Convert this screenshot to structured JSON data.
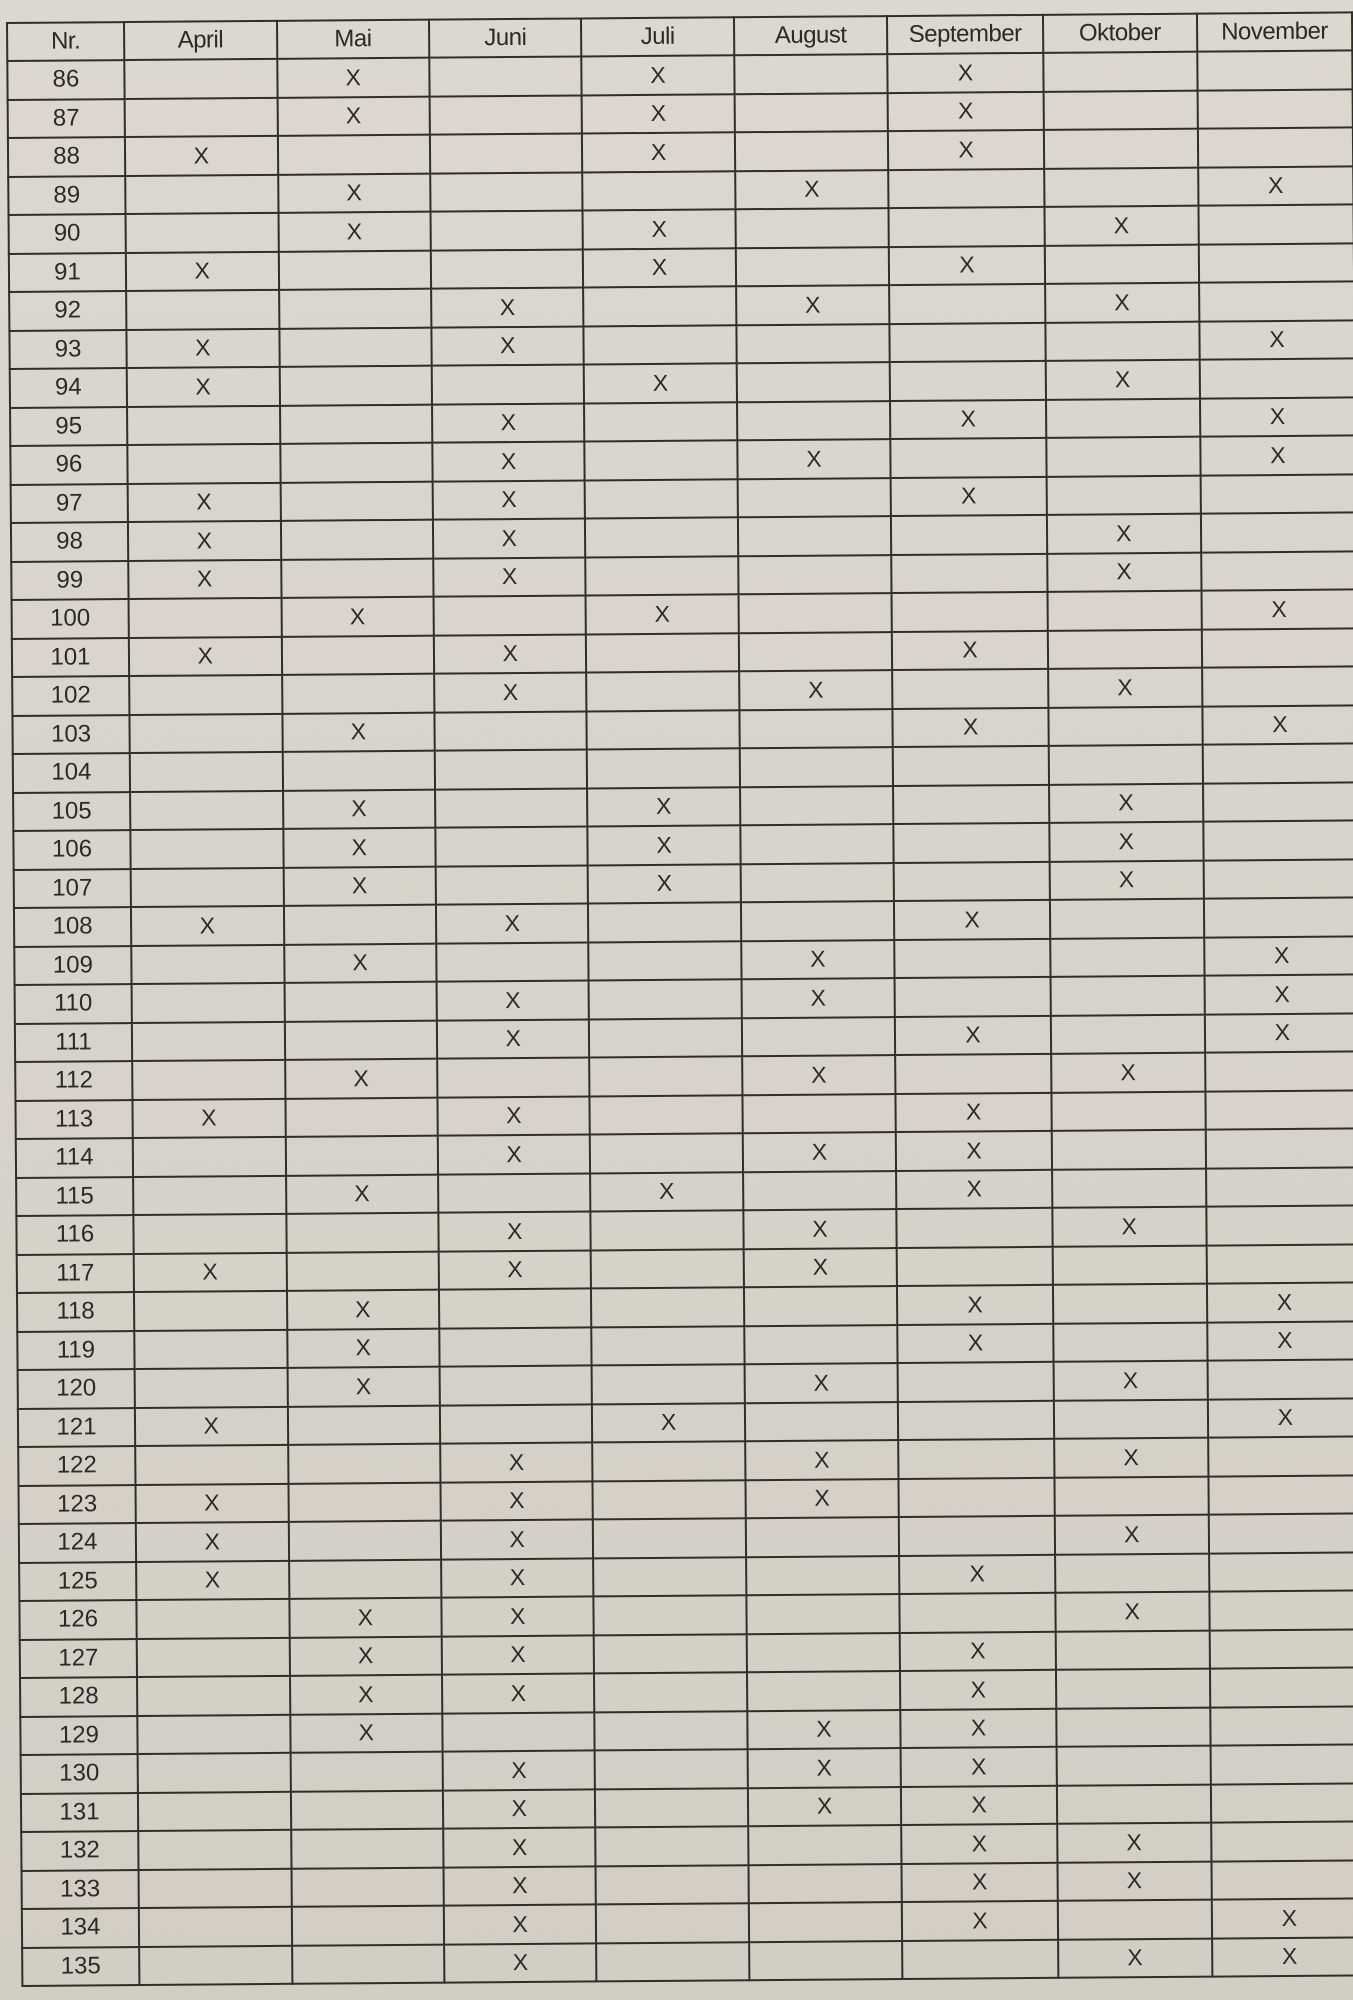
{
  "table": {
    "headers": [
      "Nr.",
      "April",
      "Mai",
      "Juni",
      "Juli",
      "August",
      "September",
      "Oktober",
      "November"
    ],
    "rows": [
      {
        "nr": "86",
        "marks": [
          "",
          "X",
          "",
          "X",
          "",
          "X",
          "",
          ""
        ]
      },
      {
        "nr": "87",
        "marks": [
          "",
          "X",
          "",
          "X",
          "",
          "X",
          "",
          ""
        ]
      },
      {
        "nr": "88",
        "marks": [
          "X",
          "",
          "",
          "X",
          "",
          "X",
          "",
          ""
        ]
      },
      {
        "nr": "89",
        "marks": [
          "",
          "X",
          "",
          "",
          "X",
          "",
          "",
          "X"
        ]
      },
      {
        "nr": "90",
        "marks": [
          "",
          "X",
          "",
          "X",
          "",
          "",
          "X",
          ""
        ]
      },
      {
        "nr": "91",
        "marks": [
          "X",
          "",
          "",
          "X",
          "",
          "X",
          "",
          ""
        ]
      },
      {
        "nr": "92",
        "marks": [
          "",
          "",
          "X",
          "",
          "X",
          "",
          "X",
          ""
        ]
      },
      {
        "nr": "93",
        "marks": [
          "X",
          "",
          "X",
          "",
          "",
          "",
          "",
          "X"
        ]
      },
      {
        "nr": "94",
        "marks": [
          "X",
          "",
          "",
          "X",
          "",
          "",
          "X",
          ""
        ]
      },
      {
        "nr": "95",
        "marks": [
          "",
          "",
          "X",
          "",
          "",
          "X",
          "",
          "X"
        ]
      },
      {
        "nr": "96",
        "marks": [
          "",
          "",
          "X",
          "",
          "X",
          "",
          "",
          "X"
        ]
      },
      {
        "nr": "97",
        "marks": [
          "X",
          "",
          "X",
          "",
          "",
          "X",
          "",
          ""
        ]
      },
      {
        "nr": "98",
        "marks": [
          "X",
          "",
          "X",
          "",
          "",
          "",
          "X",
          ""
        ]
      },
      {
        "nr": "99",
        "marks": [
          "X",
          "",
          "X",
          "",
          "",
          "",
          "X",
          ""
        ]
      },
      {
        "nr": "100",
        "marks": [
          "",
          "X",
          "",
          "X",
          "",
          "",
          "",
          "X"
        ]
      },
      {
        "nr": "101",
        "marks": [
          "X",
          "",
          "X",
          "",
          "",
          "X",
          "",
          ""
        ]
      },
      {
        "nr": "102",
        "marks": [
          "",
          "",
          "X",
          "",
          "X",
          "",
          "X",
          ""
        ]
      },
      {
        "nr": "103",
        "marks": [
          "",
          "X",
          "",
          "",
          "",
          "X",
          "",
          "X"
        ]
      },
      {
        "nr": "104",
        "marks": [
          "",
          "",
          "",
          "",
          "",
          "",
          "",
          ""
        ]
      },
      {
        "nr": "105",
        "marks": [
          "",
          "X",
          "",
          "X",
          "",
          "",
          "X",
          ""
        ]
      },
      {
        "nr": "106",
        "marks": [
          "",
          "X",
          "",
          "X",
          "",
          "",
          "X",
          ""
        ]
      },
      {
        "nr": "107",
        "marks": [
          "",
          "X",
          "",
          "X",
          "",
          "",
          "X",
          ""
        ]
      },
      {
        "nr": "108",
        "marks": [
          "X",
          "",
          "X",
          "",
          "",
          "X",
          "",
          ""
        ]
      },
      {
        "nr": "109",
        "marks": [
          "",
          "X",
          "",
          "",
          "X",
          "",
          "",
          "X"
        ]
      },
      {
        "nr": "110",
        "marks": [
          "",
          "",
          "X",
          "",
          "X",
          "",
          "",
          "X"
        ]
      },
      {
        "nr": "111",
        "marks": [
          "",
          "",
          "X",
          "",
          "",
          "X",
          "",
          "X"
        ]
      },
      {
        "nr": "112",
        "marks": [
          "",
          "X",
          "",
          "",
          "X",
          "",
          "X",
          ""
        ]
      },
      {
        "nr": "113",
        "marks": [
          "X",
          "",
          "X",
          "",
          "",
          "X",
          "",
          ""
        ]
      },
      {
        "nr": "114",
        "marks": [
          "",
          "",
          "X",
          "",
          "X",
          "X",
          "",
          ""
        ]
      },
      {
        "nr": "115",
        "marks": [
          "",
          "X",
          "",
          "X",
          "",
          "X",
          "",
          ""
        ]
      },
      {
        "nr": "116",
        "marks": [
          "",
          "",
          "X",
          "",
          "X",
          "",
          "X",
          ""
        ]
      },
      {
        "nr": "117",
        "marks": [
          "X",
          "",
          "X",
          "",
          "X",
          "",
          "",
          ""
        ]
      },
      {
        "nr": "118",
        "marks": [
          "",
          "X",
          "",
          "",
          "",
          "X",
          "",
          "X"
        ]
      },
      {
        "nr": "119",
        "marks": [
          "",
          "X",
          "",
          "",
          "",
          "X",
          "",
          "X"
        ]
      },
      {
        "nr": "120",
        "marks": [
          "",
          "X",
          "",
          "",
          "X",
          "",
          "X",
          ""
        ]
      },
      {
        "nr": "121",
        "marks": [
          "X",
          "",
          "",
          "X",
          "",
          "",
          "",
          "X"
        ]
      },
      {
        "nr": "122",
        "marks": [
          "",
          "",
          "X",
          "",
          "X",
          "",
          "X",
          ""
        ]
      },
      {
        "nr": "123",
        "marks": [
          "X",
          "",
          "X",
          "",
          "X",
          "",
          "",
          ""
        ]
      },
      {
        "nr": "124",
        "marks": [
          "X",
          "",
          "X",
          "",
          "",
          "",
          "X",
          ""
        ]
      },
      {
        "nr": "125",
        "marks": [
          "X",
          "",
          "X",
          "",
          "",
          "X",
          "",
          ""
        ]
      },
      {
        "nr": "126",
        "marks": [
          "",
          "X",
          "X",
          "",
          "",
          "",
          "X",
          ""
        ]
      },
      {
        "nr": "127",
        "marks": [
          "",
          "X",
          "X",
          "",
          "",
          "X",
          "",
          ""
        ]
      },
      {
        "nr": "128",
        "marks": [
          "",
          "X",
          "X",
          "",
          "",
          "X",
          "",
          ""
        ]
      },
      {
        "nr": "129",
        "marks": [
          "",
          "X",
          "",
          "",
          "X",
          "X",
          "",
          ""
        ]
      },
      {
        "nr": "130",
        "marks": [
          "",
          "",
          "X",
          "",
          "X",
          "X",
          "",
          ""
        ]
      },
      {
        "nr": "131",
        "marks": [
          "",
          "",
          "X",
          "",
          "X",
          "X",
          "",
          ""
        ]
      },
      {
        "nr": "132",
        "marks": [
          "",
          "",
          "X",
          "",
          "",
          "X",
          "X",
          ""
        ]
      },
      {
        "nr": "133",
        "marks": [
          "",
          "",
          "X",
          "",
          "",
          "X",
          "X",
          ""
        ]
      },
      {
        "nr": "134",
        "marks": [
          "",
          "",
          "X",
          "",
          "",
          "X",
          "",
          "X"
        ]
      },
      {
        "nr": "135",
        "marks": [
          "",
          "",
          "X",
          "",
          "",
          "",
          "X",
          "X"
        ]
      }
    ]
  }
}
